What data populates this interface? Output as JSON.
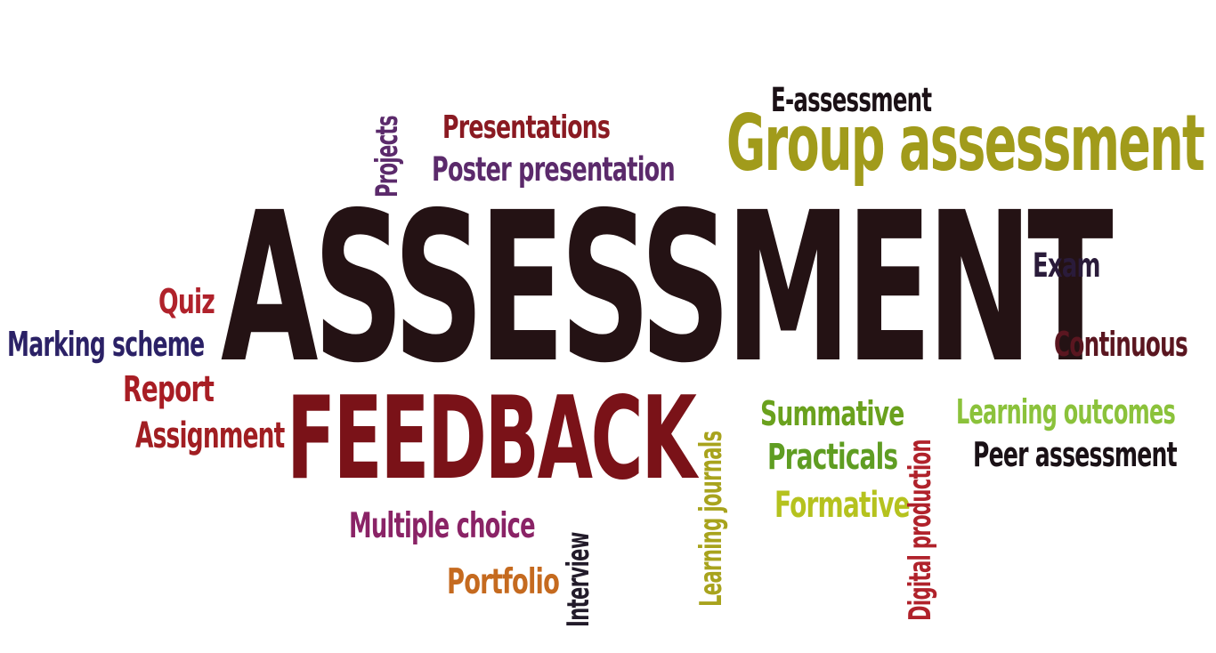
{
  "word_cloud": {
    "words": {
      "assessment": {
        "text": "ASSESSMENT",
        "color": "#241214"
      },
      "feedback": {
        "text": "FEEDBACK",
        "color": "#7a1218"
      },
      "group_assessment": {
        "text": "Group assessment",
        "color": "#a19b1b"
      },
      "e_assessment": {
        "text": "E-assessment",
        "color": "#1b1116"
      },
      "presentations": {
        "text": "Presentations",
        "color": "#8a1a22"
      },
      "poster_presentation": {
        "text": "Poster presentation",
        "color": "#5b2a6b"
      },
      "projects": {
        "text": "Projects",
        "color": "#5b2a6b"
      },
      "exam": {
        "text": "Exam",
        "color": "#2a1b3a"
      },
      "quiz": {
        "text": "Quiz",
        "color": "#b0222b"
      },
      "marking_scheme": {
        "text": "Marking scheme",
        "color": "#2b2166"
      },
      "continuous": {
        "text": "Continuous",
        "color": "#5a1620"
      },
      "report": {
        "text": "Report",
        "color": "#a81d24"
      },
      "assignment": {
        "text": "Assignment",
        "color": "#a11e22"
      },
      "summative": {
        "text": "Summative",
        "color": "#6aa11d"
      },
      "learning_outcomes": {
        "text": "Learning outcomes",
        "color": "#8bc23b"
      },
      "practicals": {
        "text": "Practicals",
        "color": "#5f9d22"
      },
      "peer_assessment": {
        "text": "Peer assessment",
        "color": "#1a1116"
      },
      "formative": {
        "text": "Formative",
        "color": "#b5c21e"
      },
      "multiple_choice": {
        "text": "Multiple choice",
        "color": "#8a2366"
      },
      "portfolio": {
        "text": "Portfolio",
        "color": "#c56a1f"
      },
      "interview": {
        "text": "Interview",
        "color": "#221b2a"
      },
      "learning_journals": {
        "text": "Learning journals",
        "color": "#a8a31d"
      },
      "digital_production": {
        "text": "Digital production",
        "color": "#b0222b"
      }
    }
  }
}
